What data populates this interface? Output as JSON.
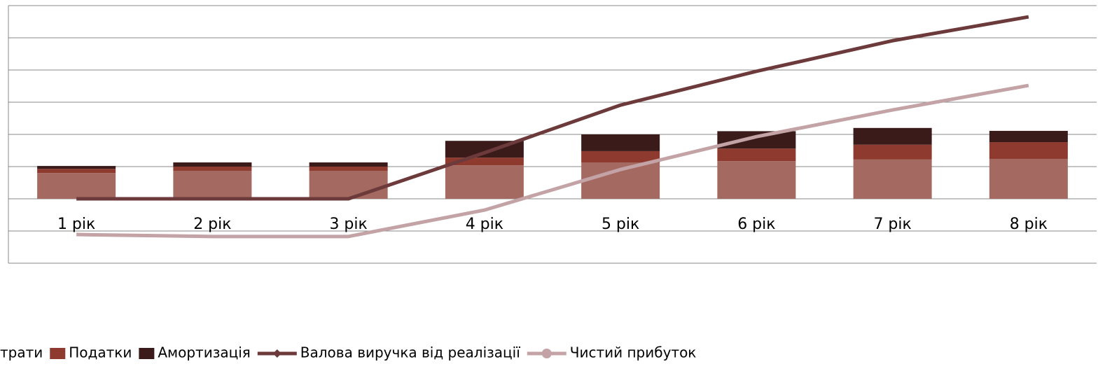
{
  "chart_data": {
    "type": "combo",
    "categories": [
      "1 рік",
      "2 рік",
      "3 рік",
      "4 рік",
      "5 рік",
      "6 рік",
      "7 рік",
      "8 рік"
    ],
    "ylim": [
      -2,
      6
    ],
    "yticks": [
      -2,
      -1,
      0,
      1,
      2,
      3,
      4,
      5,
      6
    ],
    "grid": true,
    "legend": "bottom",
    "series": [
      {
        "name": "трати",
        "type": "bar",
        "color": "#a46a62",
        "values": [
          0.8,
          0.87,
          0.87,
          1.04,
          1.13,
          1.17,
          1.22,
          1.24
        ]
      },
      {
        "name": "Податки",
        "type": "bar",
        "color": "#8e3a2e",
        "values": [
          0.13,
          0.13,
          0.13,
          0.24,
          0.35,
          0.39,
          0.46,
          0.52
        ]
      },
      {
        "name": "Амортизація",
        "type": "bar",
        "color": "#3b1a1a",
        "values": [
          0.09,
          0.13,
          0.13,
          0.52,
          0.52,
          0.54,
          0.52,
          0.35
        ]
      },
      {
        "name": "Валова виручка від реалізації",
        "type": "line",
        "marker": "diamond",
        "color": "#6d3a3b",
        "values": [
          0,
          0,
          0,
          1.43,
          2.91,
          3.96,
          4.91,
          5.65
        ]
      },
      {
        "name": "Чистий прибуток",
        "type": "line",
        "marker": "circle",
        "color": "#c3a3a6",
        "values": [
          -1.11,
          -1.17,
          -1.17,
          -0.35,
          0.91,
          1.93,
          2.76,
          3.52
        ]
      }
    ]
  }
}
